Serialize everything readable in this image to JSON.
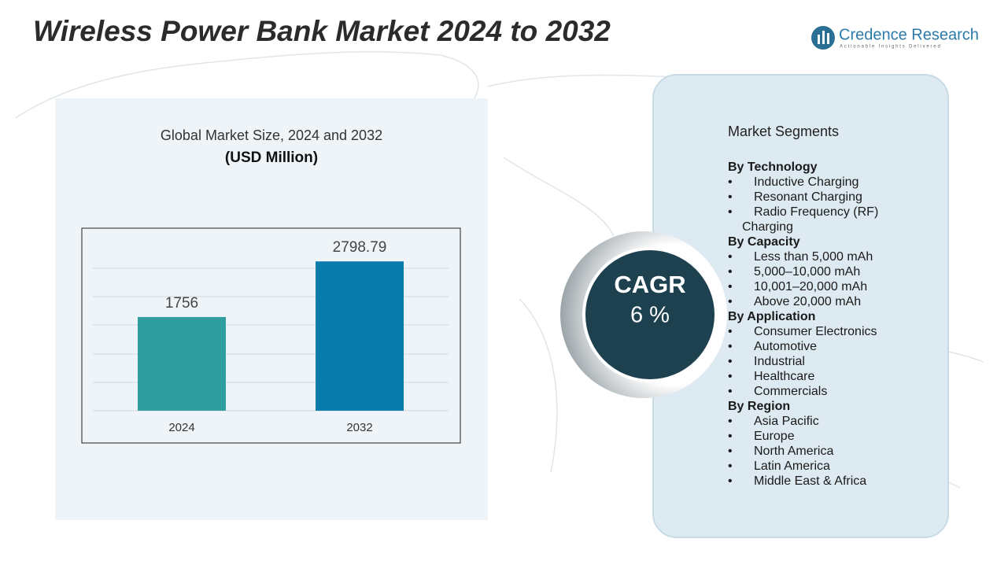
{
  "title": "Wireless Power Bank Market 2024 to 2032",
  "logo": {
    "name": "Credence Research",
    "tagline": "Actionable Insights Delivered"
  },
  "chart_data": {
    "type": "bar",
    "title": "Global Market Size, 2024 and 2032",
    "subtitle": "(USD Million)",
    "categories": [
      "2024",
      "2032"
    ],
    "values": [
      1756,
      2798.79
    ],
    "colors": [
      "#2e9e9e",
      "#0a7bad"
    ],
    "ylim": [
      0,
      3200
    ]
  },
  "cagr": {
    "label": "CAGR",
    "value": "6 %"
  },
  "segments": {
    "heading": "Market Segments",
    "groups": [
      {
        "name": "By  Technology",
        "items": [
          "Inductive Charging",
          "Resonant Charging",
          "Radio Frequency (RF) Charging"
        ]
      },
      {
        "name": "By Capacity",
        "items": [
          "Less than 5,000 mAh",
          "5,000–10,000 mAh",
          "10,001–20,000 mAh",
          "Above 20,000 mAh"
        ]
      },
      {
        "name": "By Application",
        "items": [
          "Consumer Electronics",
          "Automotive",
          "Industrial",
          "Healthcare",
          "Commercials"
        ]
      },
      {
        "name": "By Region",
        "items": [
          "Asia Pacific",
          "Europe",
          "North America",
          "Latin America",
          "Middle East & Africa"
        ]
      }
    ]
  }
}
